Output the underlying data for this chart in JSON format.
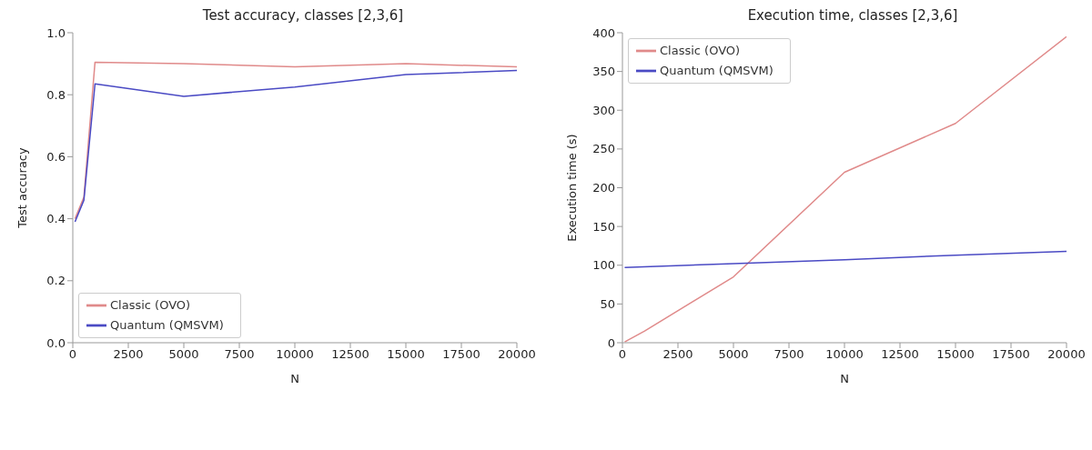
{
  "chart_data": [
    {
      "type": "line",
      "title": "Test accuracy, classes [2,3,6]",
      "xlabel": "N",
      "ylabel": "Test accuracy",
      "xlim": [
        0,
        20000
      ],
      "xticks": [
        0,
        2500,
        5000,
        7500,
        10000,
        12500,
        15000,
        17500,
        20000
      ],
      "ylim": [
        0,
        1
      ],
      "yticks": [
        {
          "value": 0,
          "label": "0.0"
        },
        0.2,
        0.4,
        0.6,
        0.8,
        {
          "value": 1,
          "label": "1.0"
        }
      ],
      "grid": false,
      "legend": "bottom left",
      "marker": "none",
      "line_style": "solid",
      "series": [
        {
          "name": "Classic (OVO)",
          "color": "#e08a8a",
          "x": [
            100,
            500,
            1000,
            5000,
            10000,
            15000,
            20000
          ],
          "values": [
            0.4,
            0.47,
            0.905,
            0.9,
            0.89,
            0.9,
            0.89
          ]
        },
        {
          "name": "Quantum (QMSVM)",
          "color": "#4a4ac4",
          "x": [
            100,
            500,
            1000,
            5000,
            10000,
            15000,
            20000
          ],
          "values": [
            0.39,
            0.46,
            0.835,
            0.795,
            0.825,
            0.865,
            0.878
          ]
        }
      ]
    },
    {
      "type": "line",
      "title": "Execution time, classes [2,3,6]",
      "xlabel": "N",
      "ylabel": "Execution time (s)",
      "xlim": [
        0,
        20000
      ],
      "xticks": [
        0,
        2500,
        5000,
        7500,
        10000,
        12500,
        15000,
        17500,
        20000
      ],
      "ylim": [
        0,
        400
      ],
      "yticks": [
        0,
        50,
        100,
        150,
        200,
        250,
        300,
        350,
        400
      ],
      "grid": false,
      "legend": "top left",
      "marker": "none",
      "line_style": "solid",
      "series": [
        {
          "name": "Classic (OVO)",
          "color": "#e08a8a",
          "x": [
            100,
            1000,
            5000,
            10000,
            15000,
            20000
          ],
          "values": [
            1,
            15,
            85,
            220,
            283,
            395
          ]
        },
        {
          "name": "Quantum (QMSVM)",
          "color": "#4a4ac4",
          "x": [
            100,
            5000,
            10000,
            15000,
            20000
          ],
          "values": [
            97,
            102,
            107,
            113,
            118
          ]
        }
      ]
    }
  ]
}
